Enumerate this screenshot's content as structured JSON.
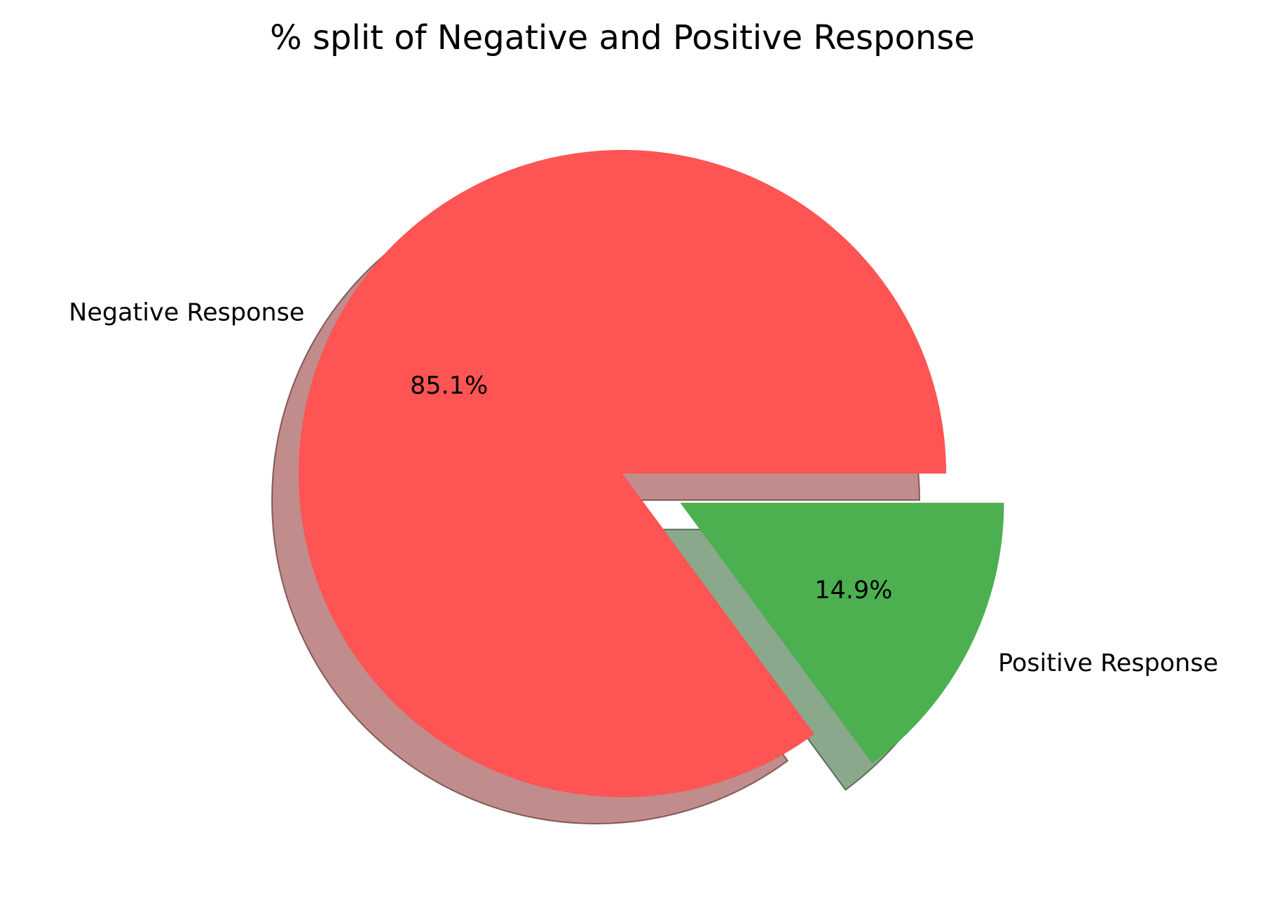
{
  "chart_data": {
    "type": "pie",
    "title": "% split of Negative and Positive Response",
    "slices": [
      {
        "label": "Negative Response",
        "value": 85.1,
        "pct_label": "85.1%",
        "color": "#ff5454",
        "exploded": false
      },
      {
        "label": "Positive Response",
        "value": 14.9,
        "pct_label": "14.9%",
        "color": "#4caf50",
        "exploded": true
      }
    ],
    "start_angle_deg": 0,
    "direction": "counterclockwise",
    "shadow": true,
    "legend": "none"
  }
}
